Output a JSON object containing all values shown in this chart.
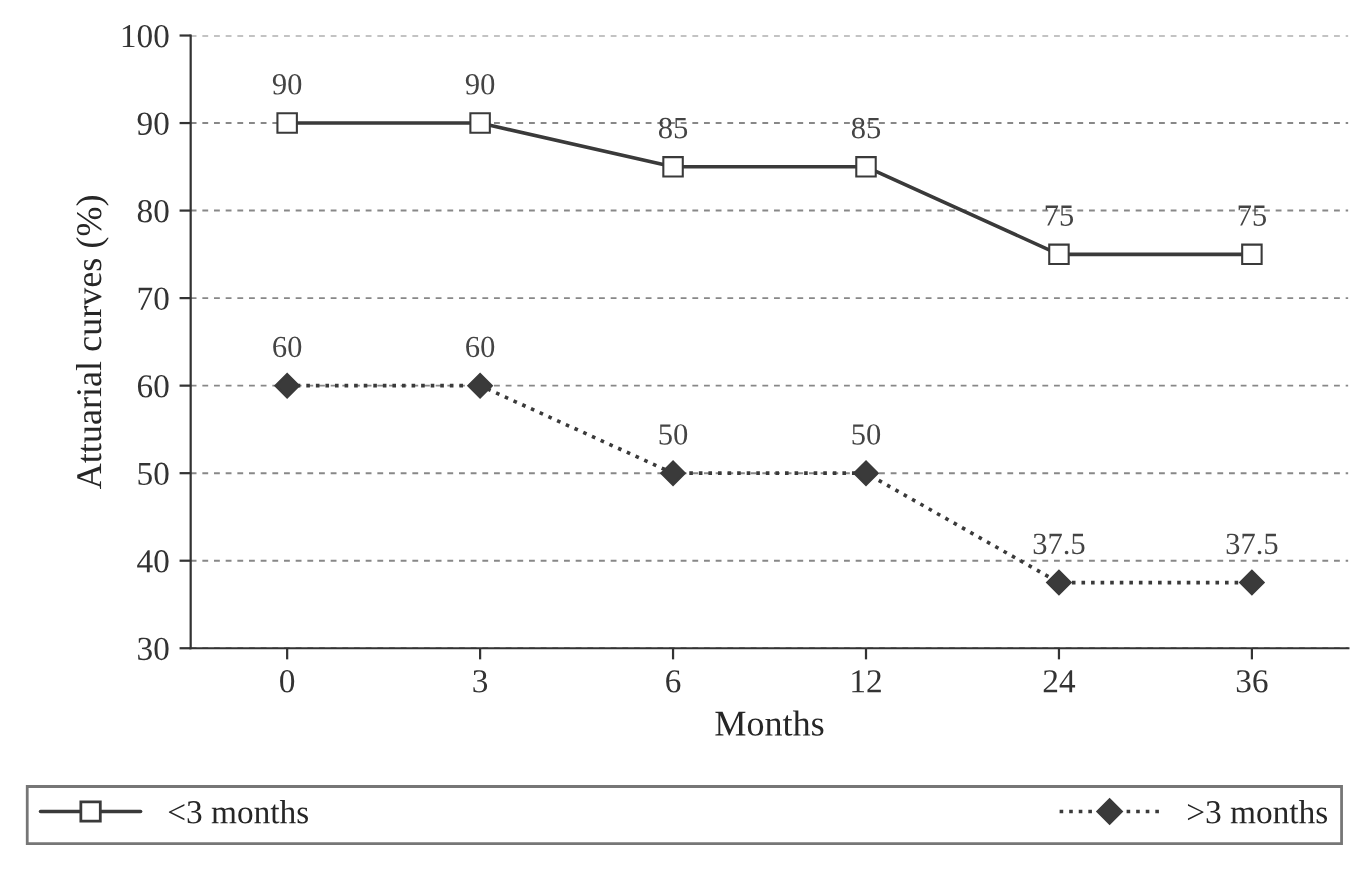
{
  "chart_data": {
    "type": "line",
    "xlabel": "Months",
    "ylabel": "Attuarial curves (%)",
    "categories": [
      "0",
      "3",
      "6",
      "12",
      "24",
      "36"
    ],
    "series": [
      {
        "name": "<3 months",
        "color": "#3a3a3a",
        "values": [
          90,
          90,
          85,
          85,
          75,
          75
        ],
        "marker": "square",
        "line_style": "solid"
      },
      {
        "name": ">3 months",
        "color": "#3a3a3a",
        "values": [
          60,
          60,
          50,
          50,
          37.5,
          37.5
        ],
        "marker": "diamond",
        "line_style": "dotted"
      }
    ],
    "ylim": [
      30,
      100
    ],
    "yticks": [
      30,
      40,
      50,
      60,
      70,
      80,
      90,
      100
    ],
    "grid": "y",
    "data_labels": true,
    "legend": "bottom"
  }
}
